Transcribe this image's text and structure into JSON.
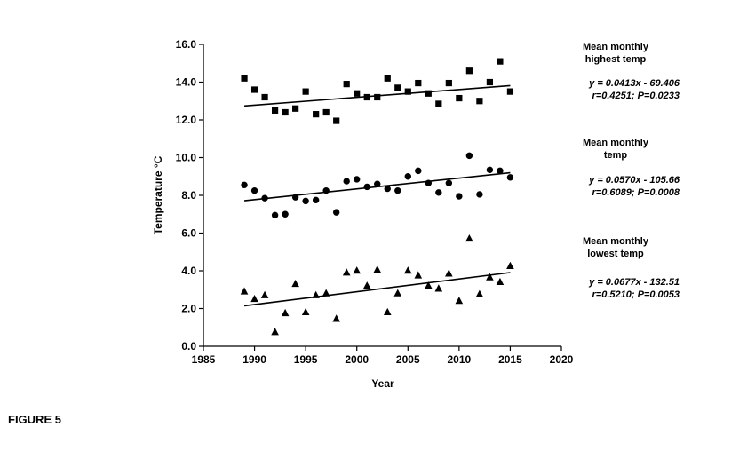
{
  "figure_caption": "FIGURE 5",
  "chart_data": {
    "type": "scatter",
    "xlabel": "Year",
    "ylabel": "Temperature °C",
    "xlim": [
      1985,
      2020
    ],
    "ylim": [
      0,
      16
    ],
    "x_ticks": [
      1985,
      1990,
      1995,
      2000,
      2005,
      2010,
      2015,
      2020
    ],
    "y_ticks": [
      0,
      2,
      4,
      6,
      8,
      10,
      12,
      14,
      16
    ],
    "x_tick_labels": [
      "1985",
      "1990",
      "1995",
      "2000",
      "2005",
      "2010",
      "2015",
      "2020"
    ],
    "y_tick_labels": [
      "0.0",
      "2.0",
      "4.0",
      "6.0",
      "8.0",
      "10.0",
      "12.0",
      "14.0",
      "16.0"
    ],
    "grid": false,
    "x": [
      1989,
      1990,
      1991,
      1992,
      1993,
      1994,
      1995,
      1996,
      1997,
      1998,
      1999,
      2000,
      2001,
      2002,
      2003,
      2004,
      2005,
      2006,
      2007,
      2008,
      2009,
      2010,
      2011,
      2012,
      2013,
      2014,
      2015
    ],
    "series": [
      {
        "name_lines": [
          "Mean monthly",
          "highest temp"
        ],
        "marker": "square",
        "values": [
          14.2,
          13.6,
          13.2,
          12.5,
          12.4,
          12.6,
          13.5,
          12.3,
          12.4,
          11.95,
          13.9,
          13.4,
          13.2,
          13.2,
          14.2,
          13.7,
          13.5,
          13.95,
          13.4,
          12.85,
          13.95,
          13.15,
          14.6,
          13.0,
          14.0,
          15.1,
          13.5
        ],
        "trend": {
          "slope": 0.0413,
          "intercept": -69.406
        },
        "equation": "y = 0.0413x - 69.406",
        "stats": "r=0.4251; P=0.0233"
      },
      {
        "name_lines": [
          "Mean monthly",
          "temp"
        ],
        "marker": "circle",
        "values": [
          8.55,
          8.25,
          7.85,
          6.95,
          7.0,
          7.9,
          7.7,
          7.75,
          8.25,
          7.1,
          8.75,
          8.85,
          8.45,
          8.6,
          8.35,
          8.25,
          9.0,
          9.3,
          8.65,
          8.15,
          8.65,
          7.95,
          10.1,
          8.05,
          9.35,
          9.3,
          8.95
        ],
        "trend": {
          "slope": 0.057,
          "intercept": -105.66
        },
        "equation": "y = 0.0570x - 105.66",
        "stats": "r=0.6089; P=0.0008"
      },
      {
        "name_lines": [
          "Mean monthly",
          "lowest temp"
        ],
        "marker": "triangle",
        "values": [
          2.9,
          2.5,
          2.7,
          0.75,
          1.75,
          3.3,
          1.8,
          2.7,
          2.8,
          1.45,
          3.9,
          4.0,
          3.2,
          4.05,
          1.8,
          2.8,
          4.0,
          3.75,
          3.2,
          3.05,
          3.85,
          2.4,
          5.7,
          2.75,
          3.65,
          3.4,
          4.25
        ],
        "trend": {
          "slope": 0.0677,
          "intercept": -132.51
        },
        "equation": "y = 0.0677x - 132.51",
        "stats": "r=0.5210; P=0.0053"
      }
    ]
  }
}
